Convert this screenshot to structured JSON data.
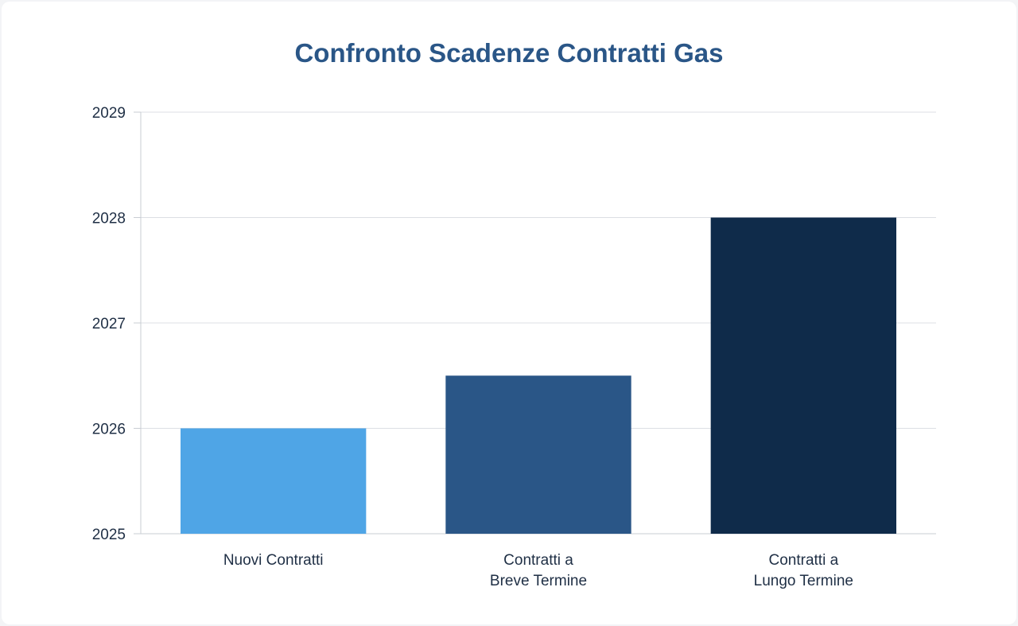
{
  "chart_data": {
    "type": "bar",
    "title": "Confronto Scadenze Contratti Gas",
    "xlabel": "",
    "ylabel": "",
    "categories": [
      [
        "Nuovi Contratti"
      ],
      [
        "Contratti a",
        "Breve Termine"
      ],
      [
        "Contratti a",
        "Lungo Termine"
      ]
    ],
    "values": [
      2026.0,
      2026.5,
      2028.0
    ],
    "colors": [
      "#4fa5e6",
      "#2a5687",
      "#0f2b4a"
    ],
    "ylim": [
      2025,
      2029
    ],
    "yticks": [
      "2025",
      "2026",
      "2027",
      "2028",
      "2029"
    ],
    "grid": true,
    "legend": "none"
  }
}
